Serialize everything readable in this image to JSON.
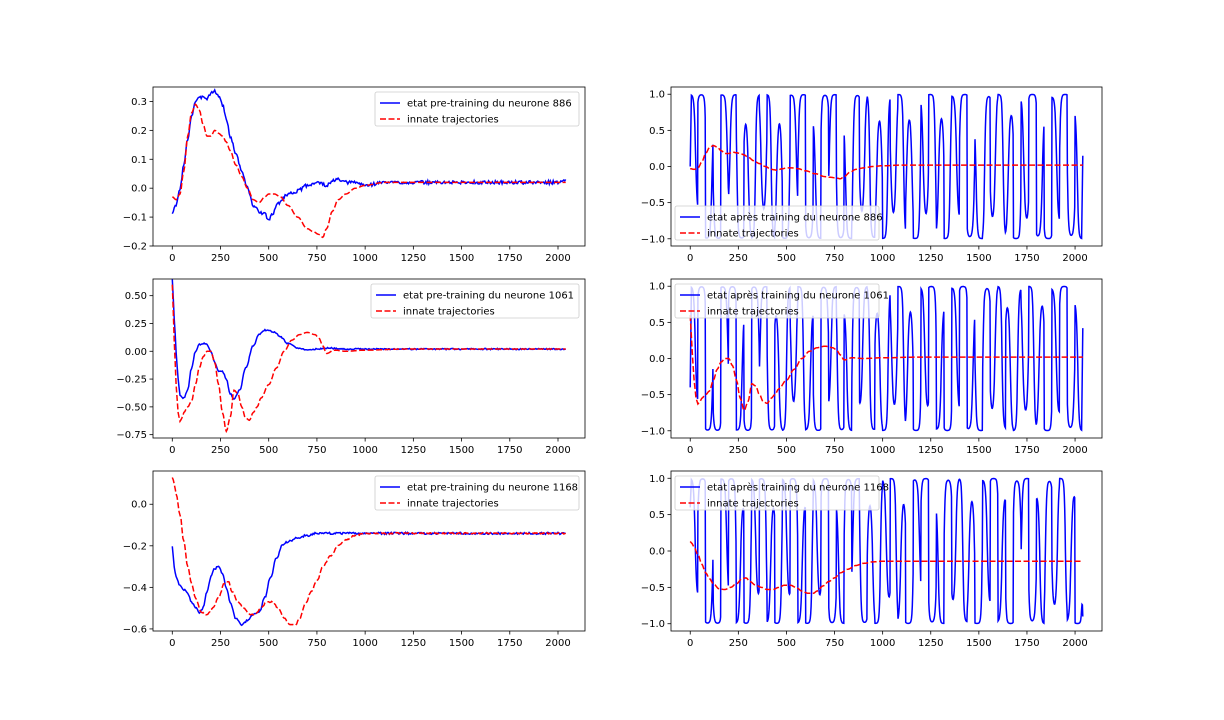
{
  "colors": {
    "pre": "#0000ff",
    "innate": "#ff0000",
    "axis": "#000000",
    "legend_border": "#cccccc"
  },
  "chart_data": [
    {
      "type": "line",
      "xlim": [
        -100,
        2140
      ],
      "ylim": [
        -0.2,
        0.35
      ],
      "xticks": [
        0,
        250,
        500,
        750,
        1000,
        1250,
        1500,
        1750,
        2000
      ],
      "yticks": [
        -0.2,
        -0.1,
        0.0,
        0.1,
        0.2,
        0.3
      ],
      "ytick_labels": [
        "−0.2",
        "−0.1",
        "0.0",
        "0.1",
        "0.2",
        "0.3"
      ],
      "legend": "upper right",
      "series": [
        {
          "name": "etat pre-training du neurone 886",
          "style": "solid",
          "x": [
            0,
            20,
            40,
            60,
            80,
            100,
            120,
            140,
            160,
            180,
            200,
            220,
            240,
            260,
            280,
            300,
            330,
            360,
            390,
            420,
            450,
            480,
            500,
            520,
            550,
            600,
            650,
            700,
            750,
            800,
            850,
            900,
            950,
            1000,
            1100,
            1200,
            1300,
            1400,
            1500,
            1600,
            1700,
            1800,
            1900,
            2000,
            2040
          ],
          "y": [
            -0.085,
            -0.06,
            0.0,
            0.08,
            0.17,
            0.25,
            0.3,
            0.31,
            0.32,
            0.31,
            0.33,
            0.335,
            0.32,
            0.29,
            0.24,
            0.18,
            0.12,
            0.06,
            0.0,
            -0.06,
            -0.08,
            -0.09,
            -0.11,
            -0.09,
            -0.05,
            -0.02,
            -0.01,
            0.01,
            0.02,
            0.01,
            0.03,
            0.02,
            0.02,
            0.01,
            0.02,
            0.02,
            0.02,
            0.02,
            0.02,
            0.02,
            0.02,
            0.02,
            0.02,
            0.02,
            0.03
          ],
          "noise": 0.006
        },
        {
          "name": "innate trajectories",
          "style": "dashed",
          "x": [
            0,
            20,
            40,
            60,
            80,
            100,
            120,
            140,
            160,
            180,
            200,
            220,
            240,
            260,
            280,
            300,
            330,
            360,
            390,
            420,
            450,
            480,
            500,
            530,
            560,
            600,
            650,
            700,
            730,
            760,
            780,
            800,
            830,
            860,
            900,
            950,
            1000,
            1100,
            1200,
            1400,
            1600,
            1800,
            2000,
            2040
          ],
          "y": [
            -0.03,
            -0.04,
            -0.02,
            0.06,
            0.18,
            0.26,
            0.29,
            0.27,
            0.22,
            0.18,
            0.18,
            0.2,
            0.19,
            0.18,
            0.16,
            0.13,
            0.08,
            0.04,
            0.0,
            -0.04,
            -0.05,
            -0.03,
            -0.02,
            -0.02,
            -0.03,
            -0.06,
            -0.1,
            -0.14,
            -0.15,
            -0.16,
            -0.17,
            -0.14,
            -0.08,
            -0.04,
            -0.02,
            0.0,
            0.01,
            0.02,
            0.02,
            0.02,
            0.02,
            0.02,
            0.02,
            0.02
          ],
          "noise": 0
        }
      ]
    },
    {
      "type": "line",
      "xlim": [
        -100,
        2140
      ],
      "ylim": [
        -0.78,
        0.65
      ],
      "xticks": [
        0,
        250,
        500,
        750,
        1000,
        1250,
        1500,
        1750,
        2000
      ],
      "yticks": [
        -0.75,
        -0.5,
        -0.25,
        0.0,
        0.25,
        0.5
      ],
      "ytick_labels": [
        "−0.75",
        "−0.50",
        "−0.25",
        "0.00",
        "0.25",
        "0.50"
      ],
      "legend": "upper right",
      "series": [
        {
          "name": "etat pre-training du neurone 1061",
          "style": "solid",
          "x": [
            0,
            10,
            20,
            30,
            40,
            60,
            80,
            100,
            120,
            140,
            160,
            180,
            200,
            220,
            240,
            260,
            280,
            300,
            320,
            350,
            380,
            420,
            450,
            480,
            500,
            530,
            560,
            600,
            650,
            700,
            750,
            800,
            900,
            1000,
            1200,
            1500,
            1800,
            2000,
            2040
          ],
          "y": [
            0.65,
            0.3,
            0.0,
            -0.25,
            -0.4,
            -0.42,
            -0.35,
            -0.15,
            0.0,
            0.06,
            0.07,
            0.06,
            0.0,
            -0.1,
            -0.18,
            -0.18,
            -0.25,
            -0.38,
            -0.43,
            -0.35,
            -0.15,
            0.05,
            0.15,
            0.19,
            0.19,
            0.17,
            0.13,
            0.07,
            0.03,
            0.01,
            0.02,
            0.03,
            0.02,
            0.02,
            0.02,
            0.02,
            0.02,
            0.02,
            0.02
          ],
          "noise": 0.006
        },
        {
          "name": "innate trajectories",
          "style": "dashed",
          "x": [
            0,
            10,
            20,
            30,
            40,
            50,
            60,
            80,
            100,
            120,
            140,
            160,
            180,
            200,
            220,
            240,
            260,
            280,
            300,
            320,
            340,
            360,
            380,
            400,
            420,
            440,
            460,
            500,
            540,
            580,
            620,
            660,
            700,
            740,
            760,
            780,
            800,
            840,
            900,
            1000,
            1200,
            1500,
            1800,
            2000,
            2040
          ],
          "y": [
            0.6,
            0.1,
            -0.3,
            -0.55,
            -0.63,
            -0.6,
            -0.55,
            -0.5,
            -0.45,
            -0.3,
            -0.15,
            -0.05,
            0.0,
            0.0,
            -0.1,
            -0.3,
            -0.55,
            -0.72,
            -0.6,
            -0.35,
            -0.38,
            -0.5,
            -0.6,
            -0.62,
            -0.55,
            -0.5,
            -0.42,
            -0.3,
            -0.15,
            0.0,
            0.1,
            0.15,
            0.17,
            0.15,
            0.12,
            0.05,
            -0.02,
            0.01,
            0.0,
            0.01,
            0.02,
            0.02,
            0.02,
            0.02,
            0.02
          ],
          "noise": 0
        }
      ]
    },
    {
      "type": "line",
      "xlim": [
        -100,
        2140
      ],
      "ylim": [
        -0.61,
        0.16
      ],
      "xticks": [
        0,
        250,
        500,
        750,
        1000,
        1250,
        1500,
        1750,
        2000
      ],
      "yticks": [
        -0.6,
        -0.4,
        -0.2,
        0.0
      ],
      "ytick_labels": [
        "−0.6",
        "−0.4",
        "−0.2",
        "0.0"
      ],
      "legend": "upper right",
      "series": [
        {
          "name": "etat pre-training du neurone 1168",
          "style": "solid",
          "x": [
            0,
            10,
            20,
            40,
            60,
            80,
            100,
            120,
            140,
            160,
            180,
            200,
            220,
            240,
            260,
            280,
            300,
            330,
            360,
            390,
            420,
            450,
            480,
            510,
            540,
            570,
            600,
            650,
            700,
            750,
            800,
            900,
            1000,
            1100,
            1200,
            1400,
            1600,
            1800,
            2000,
            2040
          ],
          "y": [
            -0.2,
            -0.3,
            -0.35,
            -0.39,
            -0.41,
            -0.43,
            -0.47,
            -0.5,
            -0.52,
            -0.5,
            -0.42,
            -0.35,
            -0.31,
            -0.3,
            -0.33,
            -0.4,
            -0.47,
            -0.55,
            -0.58,
            -0.56,
            -0.53,
            -0.52,
            -0.45,
            -0.35,
            -0.26,
            -0.2,
            -0.18,
            -0.16,
            -0.15,
            -0.14,
            -0.14,
            -0.14,
            -0.14,
            -0.14,
            -0.14,
            -0.14,
            -0.14,
            -0.14,
            -0.14,
            -0.14
          ],
          "noise": 0.005
        },
        {
          "name": "innate trajectories",
          "style": "dashed",
          "x": [
            0,
            10,
            20,
            40,
            60,
            80,
            100,
            120,
            150,
            180,
            210,
            240,
            270,
            290,
            310,
            340,
            370,
            400,
            430,
            460,
            490,
            520,
            550,
            580,
            610,
            640,
            660,
            690,
            720,
            750,
            780,
            820,
            860,
            900,
            950,
            1000,
            1100,
            1200,
            1400,
            1600,
            1800,
            2000,
            2040
          ],
          "y": [
            0.13,
            0.1,
            0.05,
            -0.05,
            -0.18,
            -0.3,
            -0.38,
            -0.45,
            -0.52,
            -0.53,
            -0.5,
            -0.45,
            -0.38,
            -0.37,
            -0.42,
            -0.47,
            -0.5,
            -0.53,
            -0.53,
            -0.5,
            -0.47,
            -0.47,
            -0.5,
            -0.55,
            -0.58,
            -0.58,
            -0.55,
            -0.48,
            -0.42,
            -0.37,
            -0.3,
            -0.25,
            -0.2,
            -0.17,
            -0.15,
            -0.14,
            -0.14,
            -0.14,
            -0.14,
            -0.14,
            -0.14,
            -0.14,
            -0.14
          ],
          "noise": 0.003
        }
      ]
    },
    {
      "type": "line",
      "xlim": [
        -100,
        2140
      ],
      "ylim": [
        -1.1,
        1.1
      ],
      "xticks": [
        0,
        250,
        500,
        750,
        1000,
        1250,
        1500,
        1750,
        2000
      ],
      "yticks": [
        -1.0,
        -0.5,
        0.0,
        0.5,
        1.0
      ],
      "ytick_labels": [
        "−1.0",
        "−0.5",
        "0.0",
        "0.5",
        "1.0"
      ],
      "legend": "lower left",
      "series": [
        {
          "name": "etat après training du neurone 886",
          "style": "solid",
          "generator": "oscillation",
          "seed": 886,
          "start": 0.0,
          "end": 0.15
        },
        {
          "name": "innate trajectories",
          "style": "dashed",
          "x": [
            0,
            20,
            40,
            60,
            80,
            100,
            120,
            140,
            160,
            180,
            200,
            220,
            240,
            260,
            280,
            300,
            330,
            360,
            390,
            420,
            450,
            480,
            500,
            530,
            560,
            600,
            650,
            700,
            730,
            760,
            780,
            800,
            830,
            860,
            900,
            950,
            1000,
            1100,
            1200,
            1400,
            1600,
            1800,
            2000,
            2040
          ],
          "y": [
            -0.03,
            -0.04,
            -0.02,
            0.06,
            0.18,
            0.26,
            0.29,
            0.27,
            0.22,
            0.18,
            0.18,
            0.2,
            0.19,
            0.18,
            0.16,
            0.13,
            0.08,
            0.04,
            0.0,
            -0.04,
            -0.05,
            -0.03,
            -0.02,
            -0.02,
            -0.03,
            -0.06,
            -0.1,
            -0.14,
            -0.15,
            -0.16,
            -0.17,
            -0.14,
            -0.08,
            -0.04,
            -0.02,
            0.0,
            0.01,
            0.02,
            0.02,
            0.02,
            0.02,
            0.02,
            0.02,
            0.02
          ],
          "noise": 0
        }
      ]
    },
    {
      "type": "line",
      "xlim": [
        -100,
        2140
      ],
      "ylim": [
        -1.1,
        1.1
      ],
      "xticks": [
        0,
        250,
        500,
        750,
        1000,
        1250,
        1500,
        1750,
        2000
      ],
      "yticks": [
        -1.0,
        -0.5,
        0.0,
        0.5,
        1.0
      ],
      "ytick_labels": [
        "−1.0",
        "−0.5",
        "0.0",
        "0.5",
        "1.0"
      ],
      "legend": "upper left",
      "series": [
        {
          "name": "etat après training du neurone 1061",
          "style": "solid",
          "generator": "oscillation",
          "seed": 1061,
          "start": -0.4,
          "end": 0.42
        },
        {
          "name": "innate trajectories",
          "style": "dashed",
          "x": [
            0,
            10,
            20,
            30,
            40,
            50,
            60,
            80,
            100,
            120,
            140,
            160,
            180,
            200,
            220,
            240,
            260,
            280,
            300,
            320,
            340,
            360,
            380,
            400,
            420,
            440,
            460,
            500,
            540,
            580,
            620,
            660,
            700,
            740,
            760,
            780,
            800,
            840,
            900,
            1000,
            1200,
            1500,
            1800,
            2000,
            2040
          ],
          "y": [
            0.6,
            0.1,
            -0.3,
            -0.55,
            -0.63,
            -0.6,
            -0.55,
            -0.5,
            -0.45,
            -0.3,
            -0.15,
            -0.05,
            0.0,
            0.0,
            -0.1,
            -0.3,
            -0.55,
            -0.72,
            -0.6,
            -0.35,
            -0.38,
            -0.5,
            -0.6,
            -0.62,
            -0.55,
            -0.5,
            -0.42,
            -0.3,
            -0.15,
            0.0,
            0.1,
            0.15,
            0.17,
            0.15,
            0.12,
            0.05,
            -0.02,
            0.01,
            0.0,
            0.01,
            0.02,
            0.02,
            0.02,
            0.02,
            0.02
          ],
          "noise": 0
        }
      ]
    },
    {
      "type": "line",
      "xlim": [
        -100,
        2140
      ],
      "ylim": [
        -1.1,
        1.1
      ],
      "xticks": [
        0,
        250,
        500,
        750,
        1000,
        1250,
        1500,
        1750,
        2000
      ],
      "yticks": [
        -1.0,
        -0.5,
        0.0,
        0.5,
        1.0
      ],
      "ytick_labels": [
        "−1.0",
        "−0.5",
        "0.0",
        "0.5",
        "1.0"
      ],
      "legend": "upper left",
      "series": [
        {
          "name": "etat après training du neurone 1168",
          "style": "solid",
          "generator": "oscillation",
          "seed": 1168,
          "start": 0.6,
          "end": -0.9
        },
        {
          "name": "innate trajectories",
          "style": "dashed",
          "x": [
            0,
            10,
            20,
            40,
            60,
            80,
            100,
            120,
            150,
            180,
            210,
            240,
            270,
            290,
            310,
            340,
            370,
            400,
            430,
            460,
            490,
            520,
            550,
            580,
            610,
            640,
            660,
            690,
            720,
            750,
            780,
            820,
            860,
            900,
            950,
            1000,
            1100,
            1200,
            1400,
            1600,
            1800,
            2000,
            2040
          ],
          "y": [
            0.13,
            0.1,
            0.05,
            -0.05,
            -0.18,
            -0.3,
            -0.38,
            -0.45,
            -0.52,
            -0.53,
            -0.5,
            -0.45,
            -0.38,
            -0.37,
            -0.42,
            -0.47,
            -0.5,
            -0.53,
            -0.53,
            -0.5,
            -0.47,
            -0.47,
            -0.5,
            -0.55,
            -0.58,
            -0.58,
            -0.55,
            -0.48,
            -0.42,
            -0.37,
            -0.3,
            -0.25,
            -0.2,
            -0.17,
            -0.15,
            -0.14,
            -0.14,
            -0.14,
            -0.14,
            -0.14,
            -0.14,
            -0.14,
            -0.14
          ],
          "noise": 0
        }
      ]
    }
  ]
}
